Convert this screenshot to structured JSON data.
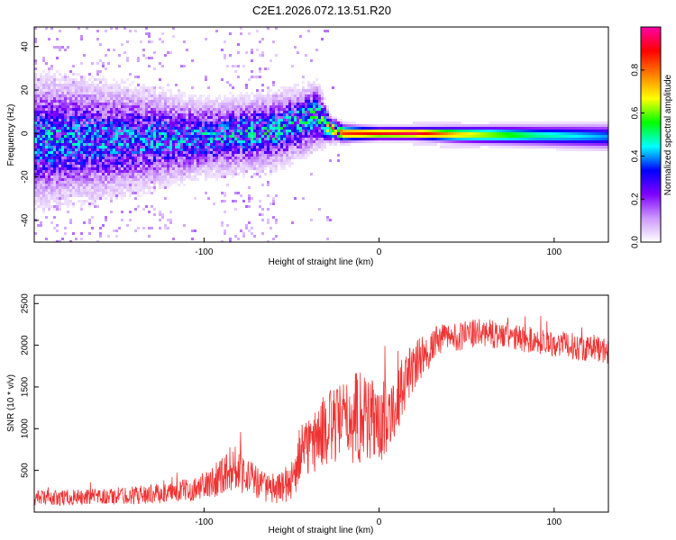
{
  "figure_title": "C2E1.2026.072.13.51.R20",
  "chart_data": [
    {
      "type": "heatmap",
      "id": "spectrogram",
      "xlabel": "Height of straight line (km)",
      "ylabel": "Frequency (Hz)",
      "xlim": [
        -197,
        131
      ],
      "ylim": [
        -50,
        49
      ],
      "xticks": [
        -100,
        0,
        100
      ],
      "xtick_labels": [
        "-100",
        "0",
        "100"
      ],
      "yticks": [
        -40,
        -20,
        0,
        20,
        40
      ],
      "ytick_labels": [
        "-40",
        "-20",
        "0",
        "20",
        "40"
      ],
      "colorbar": {
        "label": "Normalized spectral amplitude",
        "range": [
          0,
          1
        ],
        "ticks": [
          0,
          0.2,
          0.4,
          0.6,
          0.8
        ],
        "tick_labels": [
          "0.0",
          "0.2",
          "0.4",
          "0.6",
          "0.8"
        ],
        "colors": [
          "#ffffff",
          "#cc99ff",
          "#7f00ff",
          "#0000ff",
          "#00ffff",
          "#00ff00",
          "#ffff00",
          "#ff8000",
          "#ff0000",
          "#ff00aa"
        ]
      },
      "ridge": [
        {
          "x": -197,
          "f": -3,
          "spread": 14,
          "amp": 0.42
        },
        {
          "x": -150,
          "f": -3,
          "spread": 12,
          "amp": 0.4
        },
        {
          "x": -100,
          "f": -2,
          "spread": 8,
          "amp": 0.42
        },
        {
          "x": -60,
          "f": 1,
          "spread": 8,
          "amp": 0.45
        },
        {
          "x": -35,
          "f": 8,
          "spread": 7,
          "amp": 0.5
        },
        {
          "x": -28,
          "f": 2,
          "spread": 3,
          "amp": 0.7
        },
        {
          "x": -20,
          "f": 0,
          "spread": 2,
          "amp": 0.85
        },
        {
          "x": 0,
          "f": 0,
          "spread": 1.5,
          "amp": 0.9
        },
        {
          "x": 20,
          "f": 0,
          "spread": 1.5,
          "amp": 0.95
        },
        {
          "x": 45,
          "f": -0.5,
          "spread": 2,
          "amp": 0.72
        },
        {
          "x": 90,
          "f": -1,
          "spread": 2.5,
          "amp": 0.5
        },
        {
          "x": 131,
          "f": -1.5,
          "spread": 3,
          "amp": 0.4
        }
      ]
    },
    {
      "type": "line",
      "id": "snr",
      "xlabel": "Height of straight line (km)",
      "ylabel": "SNR (10 * v/v)",
      "xlim": [
        -197,
        131
      ],
      "ylim": [
        0,
        2600
      ],
      "xticks": [
        -100,
        0,
        100
      ],
      "xtick_labels": [
        "-100",
        "0",
        "100"
      ],
      "yticks": [
        500,
        1000,
        1500,
        2000,
        2500
      ],
      "ytick_labels": [
        "500",
        "1000",
        "1500",
        "2000",
        "2500"
      ],
      "series": [
        {
          "name": "SNR",
          "color": "#ee3333",
          "envelope": [
            {
              "x": -197,
              "base": 170,
              "noise": 90
            },
            {
              "x": -160,
              "base": 180,
              "noise": 100
            },
            {
              "x": -120,
              "base": 230,
              "noise": 120
            },
            {
              "x": -100,
              "base": 300,
              "noise": 150
            },
            {
              "x": -90,
              "base": 450,
              "noise": 250
            },
            {
              "x": -82,
              "base": 550,
              "noise": 280
            },
            {
              "x": -72,
              "base": 380,
              "noise": 220
            },
            {
              "x": -60,
              "base": 250,
              "noise": 150
            },
            {
              "x": -50,
              "base": 380,
              "noise": 250
            },
            {
              "x": -42,
              "base": 750,
              "noise": 350
            },
            {
              "x": -30,
              "base": 1000,
              "noise": 450
            },
            {
              "x": -18,
              "base": 1100,
              "noise": 500
            },
            {
              "x": -8,
              "base": 1200,
              "noise": 650
            },
            {
              "x": 0,
              "base": 1000,
              "noise": 450
            },
            {
              "x": 10,
              "base": 1350,
              "noise": 400
            },
            {
              "x": 20,
              "base": 1750,
              "noise": 300
            },
            {
              "x": 35,
              "base": 2080,
              "noise": 180
            },
            {
              "x": 60,
              "base": 2150,
              "noise": 170
            },
            {
              "x": 90,
              "base": 2050,
              "noise": 160
            },
            {
              "x": 131,
              "base": 1930,
              "noise": 160
            }
          ]
        }
      ]
    }
  ]
}
